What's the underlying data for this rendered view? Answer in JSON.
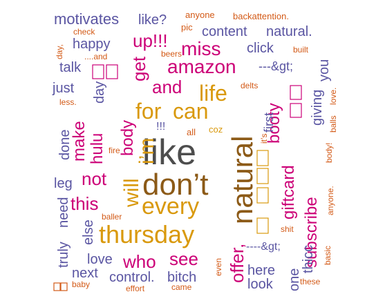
{
  "word_cloud": {
    "palette": {
      "magenta": "#cc0077",
      "purple": "#5a55a2",
      "gold": "#d9990d",
      "orange": "#d35a17",
      "brown": "#8c5a17",
      "gray": "#4d4d4d"
    },
    "words": [
      {
        "text": "like",
        "color": "gray"
      },
      {
        "text": "don’t",
        "color": "brown"
      },
      {
        "text": "natural",
        "color": "brown"
      },
      {
        "text": "thursday",
        "color": "gold"
      },
      {
        "text": "every",
        "color": "gold"
      },
      {
        "text": "i’m",
        "color": "gold"
      },
      {
        "text": "will",
        "color": "gold"
      },
      {
        "text": "for",
        "color": "gold"
      },
      {
        "text": "can",
        "color": "gold"
      },
      {
        "text": "life",
        "color": "gold"
      },
      {
        "text": "amazon",
        "color": "magenta"
      },
      {
        "text": "miss",
        "color": "magenta"
      },
      {
        "text": "up!!!",
        "color": "magenta"
      },
      {
        "text": "and",
        "color": "magenta"
      },
      {
        "text": "get",
        "color": "magenta"
      },
      {
        "text": "body",
        "color": "magenta"
      },
      {
        "text": "make",
        "color": "magenta"
      },
      {
        "text": "hulu",
        "color": "magenta"
      },
      {
        "text": "not",
        "color": "magenta"
      },
      {
        "text": "this",
        "color": "magenta"
      },
      {
        "text": "who",
        "color": "magenta"
      },
      {
        "text": "see",
        "color": "magenta"
      },
      {
        "text": "offer,",
        "color": "magenta"
      },
      {
        "text": "giftcard",
        "color": "magenta"
      },
      {
        "text": "subscribe",
        "color": "magenta"
      },
      {
        "text": "booty",
        "color": "magenta"
      },
      {
        "text": "motivates",
        "color": "purple"
      },
      {
        "text": "like?",
        "color": "purple"
      },
      {
        "text": "content",
        "color": "purple"
      },
      {
        "text": "natural.",
        "color": "purple"
      },
      {
        "text": "happy",
        "color": "purple"
      },
      {
        "text": "click",
        "color": "purple"
      },
      {
        "text": "talk",
        "color": "purple"
      },
      {
        "text": "---&gt;",
        "color": "purple"
      },
      {
        "text": "you",
        "color": "purple"
      },
      {
        "text": "just",
        "color": "purple"
      },
      {
        "text": "day",
        "color": "purple"
      },
      {
        "text": "done",
        "color": "purple"
      },
      {
        "text": "first",
        "color": "purple"
      },
      {
        "text": "giving",
        "color": "purple"
      },
      {
        "text": "leg",
        "color": "purple"
      },
      {
        "text": "need",
        "color": "purple"
      },
      {
        "text": "truly",
        "color": "purple"
      },
      {
        "text": "else",
        "color": "purple"
      },
      {
        "text": "love",
        "color": "purple"
      },
      {
        "text": "next",
        "color": "purple"
      },
      {
        "text": "control.",
        "color": "purple"
      },
      {
        "text": "bitch",
        "color": "purple"
      },
      {
        "text": "here",
        "color": "purple"
      },
      {
        "text": "look",
        "color": "purple"
      },
      {
        "text": "one",
        "color": "purple"
      },
      {
        "text": "thicc",
        "color": "purple"
      },
      {
        "text": "----&gt;",
        "color": "purple"
      },
      {
        "text": "!!!",
        "color": "purple"
      },
      {
        "text": "coz",
        "color": "gold"
      },
      {
        "text": "all",
        "color": "orange"
      },
      {
        "text": "anyone",
        "color": "orange"
      },
      {
        "text": "backattention.",
        "color": "orange"
      },
      {
        "text": "check",
        "color": "orange"
      },
      {
        "text": "pic",
        "color": "orange"
      },
      {
        "text": "day,",
        "color": "orange"
      },
      {
        "text": "....and",
        "color": "orange"
      },
      {
        "text": "beers",
        "color": "orange"
      },
      {
        "text": "built",
        "color": "orange"
      },
      {
        "text": "delts",
        "color": "orange"
      },
      {
        "text": "less.",
        "color": "orange"
      },
      {
        "text": "balls",
        "color": "orange"
      },
      {
        "text": "love.",
        "color": "orange"
      },
      {
        "text": "it’s",
        "color": "orange"
      },
      {
        "text": "fire",
        "color": "orange"
      },
      {
        "text": "baller",
        "color": "orange"
      },
      {
        "text": "shit",
        "color": "orange"
      },
      {
        "text": "anyone.",
        "color": "orange"
      },
      {
        "text": "body!",
        "color": "orange"
      },
      {
        "text": "basic",
        "color": "orange"
      },
      {
        "text": "even",
        "color": "orange"
      },
      {
        "text": "baby",
        "color": "orange"
      },
      {
        "text": "effort",
        "color": "orange"
      },
      {
        "text": "came",
        "color": "orange"
      },
      {
        "text": "these",
        "color": "orange"
      }
    ]
  }
}
